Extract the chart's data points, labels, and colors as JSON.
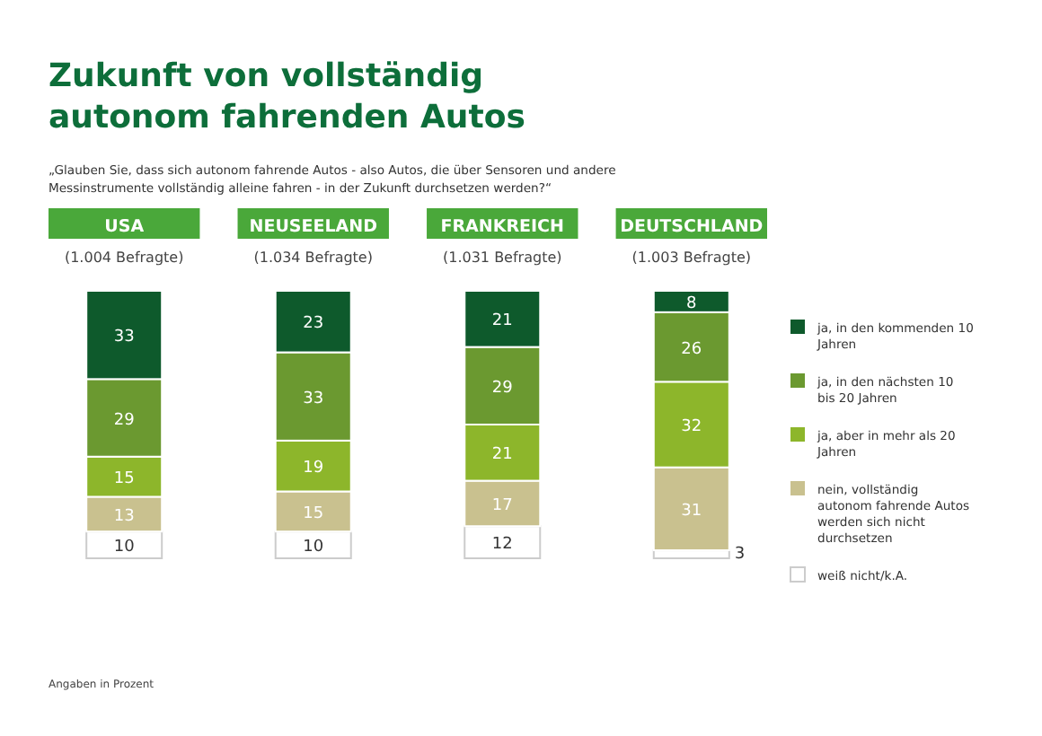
{
  "chart_data": {
    "type": "bar",
    "stacked": true,
    "title": "Zukunft von vollständig autonom fahrenden Autos",
    "subtitle": "„Glauben Sie, dass sich autonom fahrende Autos - also Autos, die über Sensoren und andere Messinstrumente vollständig alleine fahren - in der Zukunft durchsetzen werden?“",
    "categories": [
      "USA",
      "NEUSEELAND",
      "FRANKREICH",
      "DEUTSCHLAND"
    ],
    "series": [
      {
        "name": "weiß nicht/k.A.",
        "color": "#ffffff",
        "values": [
          10,
          10,
          12,
          3
        ]
      },
      {
        "name": "nein, vollständig autonom fahrende Autos werden sich nicht durchsetzen",
        "color": "#c9c18f",
        "values": [
          13,
          15,
          17,
          31
        ]
      },
      {
        "name": "ja, aber in mehr als 20 Jahren",
        "color": "#8db62b",
        "values": [
          15,
          19,
          21,
          32
        ]
      },
      {
        "name": "ja, in den nächsten 10 bis 20 Jahren",
        "color": "#6b9930",
        "values": [
          29,
          33,
          29,
          26
        ]
      },
      {
        "name": "ja, in den kommenden 10 Jahren",
        "color": "#0e5a2c",
        "values": [
          33,
          23,
          21,
          8
        ]
      }
    ],
    "data_labels": true,
    "legend": "right",
    "annotations": [
      "(1.004 Befragte)",
      "(1.034 Befragte)",
      "(1.031 Befragte)",
      "(1.003 Befragte)",
      "Angaben in Prozent"
    ]
  }
}
